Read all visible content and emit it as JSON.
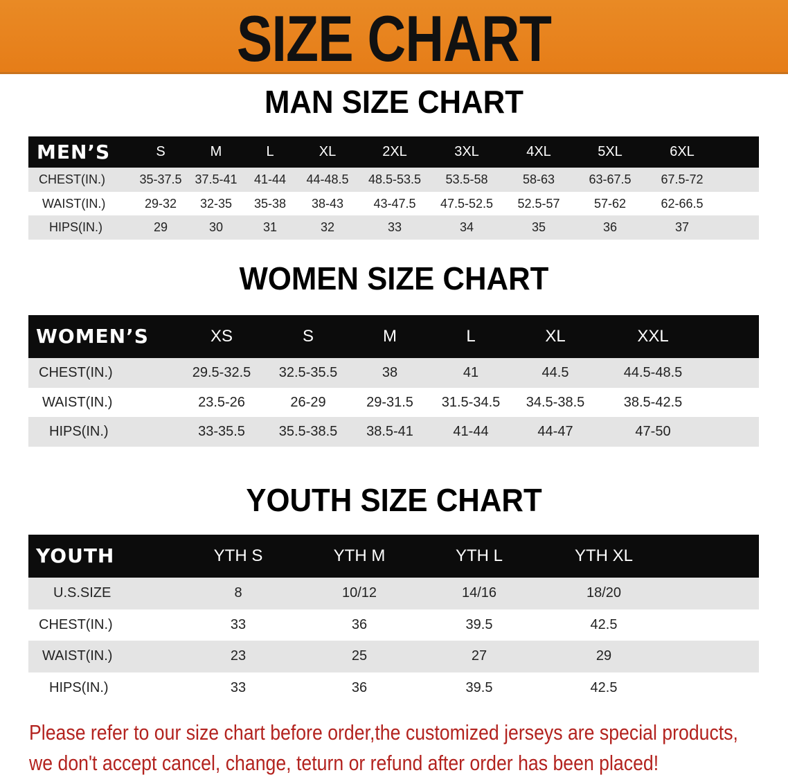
{
  "banner": {
    "title": "SIZE CHART",
    "color": "#e8821f"
  },
  "men": {
    "title": "MAN SIZE CHART",
    "header_label": "MEN’S",
    "sizes": [
      "S",
      "M",
      "L",
      "XL",
      "2XL",
      "3XL",
      "4XL",
      "5XL",
      "6XL"
    ],
    "rows": [
      {
        "label": "CHEST(IN.)",
        "values": [
          "35-37.5",
          "37.5-41",
          "41-44",
          "44-48.5",
          "48.5-53.5",
          "53.5-58",
          "58-63",
          "63-67.5",
          "67.5-72"
        ]
      },
      {
        "label": "WAIST(IN.)",
        "values": [
          "29-32",
          "32-35",
          "35-38",
          "38-43",
          "43-47.5",
          "47.5-52.5",
          "52.5-57",
          "57-62",
          "62-66.5"
        ]
      },
      {
        "label": "HIPS(IN.)",
        "values": [
          "29",
          "30",
          "31",
          "32",
          "33",
          "34",
          "35",
          "36",
          "37"
        ]
      }
    ]
  },
  "women": {
    "title": "WOMEN SIZE CHART",
    "header_label": "WOMEN’S",
    "sizes": [
      "XS",
      "S",
      "M",
      "L",
      "XL",
      "XXL"
    ],
    "rows": [
      {
        "label": "CHEST(IN.)",
        "values": [
          "29.5-32.5",
          "32.5-35.5",
          "38",
          "41",
          "44.5",
          "44.5-48.5"
        ]
      },
      {
        "label": "WAIST(IN.)",
        "values": [
          "23.5-26",
          "26-29",
          "29-31.5",
          "31.5-34.5",
          "34.5-38.5",
          "38.5-42.5"
        ]
      },
      {
        "label": "HIPS(IN.)",
        "values": [
          "33-35.5",
          "35.5-38.5",
          "38.5-41",
          "41-44",
          "44-47",
          "47-50"
        ]
      }
    ]
  },
  "youth": {
    "title": "YOUTH SIZE CHART",
    "header_label": "YOUTH",
    "sizes": [
      "YTH S",
      "YTH M",
      "YTH L",
      "YTH XL"
    ],
    "rows": [
      {
        "label": "U.S.SIZE",
        "values": [
          "8",
          "10/12",
          "14/16",
          "18/20"
        ]
      },
      {
        "label": "CHEST(IN.)",
        "values": [
          "33",
          "36",
          "39.5",
          "42.5"
        ]
      },
      {
        "label": "WAIST(IN.)",
        "values": [
          "23",
          "25",
          "27",
          "29"
        ]
      },
      {
        "label": "HIPS(IN.)",
        "values": [
          "33",
          "36",
          "39.5",
          "42.5"
        ]
      }
    ]
  },
  "notice": {
    "line1": "Please refer to our size chart before order,the customized jerseys are special products,",
    "line2": "we don't accept cancel, change, teturn or refund after order has been placed!",
    "color": "#b3231f"
  }
}
